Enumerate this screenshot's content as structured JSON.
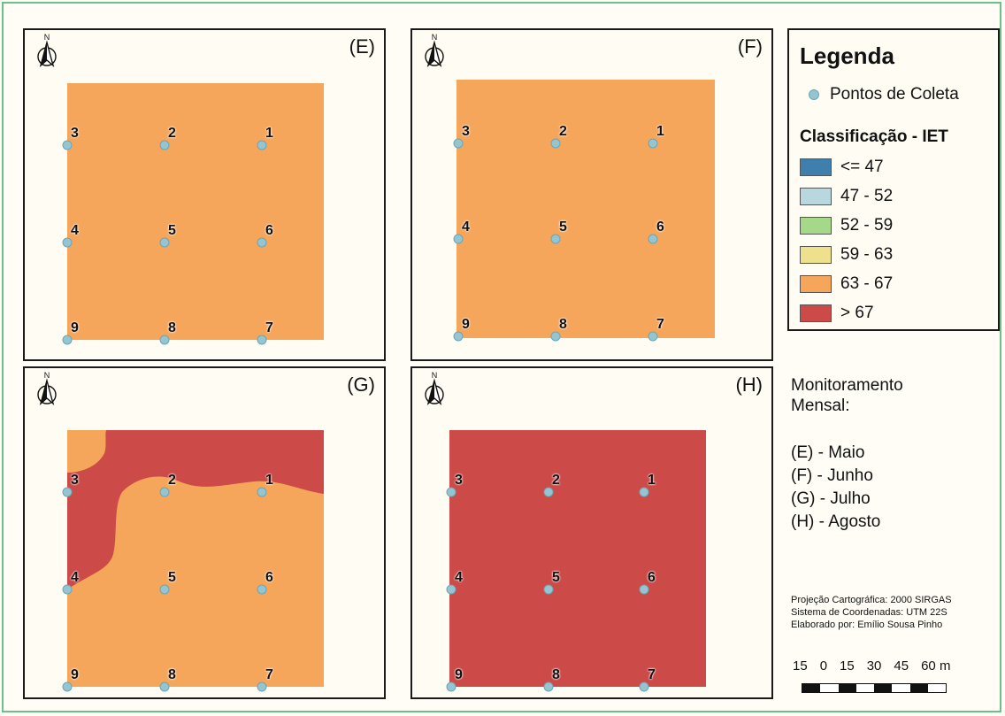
{
  "panels": [
    {
      "id": "E",
      "label": "(E)"
    },
    {
      "id": "F",
      "label": "(F)"
    },
    {
      "id": "G",
      "label": "(G)"
    },
    {
      "id": "H",
      "label": "(H)"
    }
  ],
  "points": [
    "1",
    "2",
    "3",
    "4",
    "5",
    "6",
    "7",
    "8",
    "9"
  ],
  "north_letter": "N",
  "legend": {
    "title": "Legenda",
    "point_label": "Pontos de Coleta",
    "class_title": "Classificação - IET",
    "classes": [
      {
        "label": "<= 47",
        "color": "#3f7fae"
      },
      {
        "label": "47 - 52",
        "color": "#b9d7de"
      },
      {
        "label": "52 - 59",
        "color": "#a6d88a"
      },
      {
        "label": "59 - 63",
        "color": "#efe08d"
      },
      {
        "label": "63 - 67",
        "color": "#f5a65b"
      },
      {
        "label": "> 67",
        "color": "#cc4a48"
      }
    ]
  },
  "monitoring": {
    "title_line1": "Monitoramento",
    "title_line2": "Mensal:",
    "months": [
      "(E) - Maio",
      "(F) - Junho",
      "(G) - Julho",
      "(H) - Agosto"
    ]
  },
  "credits": {
    "projection": "Projeção Cartográfica: 2000 SIRGAS",
    "coordinates": "Sistema de Coordenadas: UTM 22S",
    "author": "Elaborado por: Emílio Sousa Pinho"
  },
  "scale": {
    "ticks": [
      "15",
      "0",
      "15",
      "30",
      "45",
      "60 m"
    ]
  },
  "colors": {
    "orange": "#f5a65b",
    "red": "#cc4a48",
    "point": "#93c5d3"
  }
}
